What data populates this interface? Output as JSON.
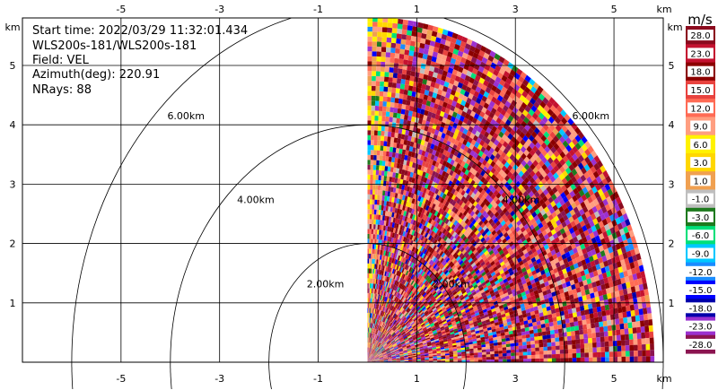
{
  "chart_data": {
    "type": "heatmap",
    "subtype": "radar-ppi-sector",
    "info": {
      "start_time": "Start time: 2022/03/29 11:32:01.434",
      "instrument": "WLS200s-181/WLS200s-181",
      "field": "Field: VEL",
      "azimuth": "Azimuth(deg): 220.91",
      "nrays": "NRays: 88"
    },
    "x_unit": "km",
    "y_unit": "km",
    "xlim": [
      -7.0,
      6.0
    ],
    "ylim": [
      0.0,
      5.8
    ],
    "x_ticks": [
      -5,
      -3,
      -1,
      1,
      3,
      5
    ],
    "y_ticks": [
      1,
      2,
      3,
      4,
      5
    ],
    "sector_deg": [
      0,
      90
    ],
    "max_range_km": 5.82,
    "range_rings": [
      {
        "r": 2,
        "label": "2.00km"
      },
      {
        "r": 4,
        "label": "4.00km"
      },
      {
        "r": 6,
        "label": "6.00km"
      }
    ],
    "colorbar": {
      "unit": "m/s",
      "levels": [
        "28.0",
        "23.0",
        "18.0",
        "15.0",
        "12.0",
        "9.0",
        "6.0",
        "3.0",
        "1.0",
        "-1.0",
        "-3.0",
        "-6.0",
        "-9.0",
        "-12.0",
        "-15.0",
        "-18.0",
        "-23.0",
        "-28.0"
      ],
      "colors": [
        "#8b0a1e",
        "#c41230",
        "#8b0000",
        "#e8433f",
        "#ff6b55",
        "#ff9e80",
        "#fff200",
        "#ffd700",
        "#f0a050",
        "#bfbfbf",
        "#1e7a1e",
        "#00e07a",
        "#00c8ff",
        "#1a8cff",
        "#0000ff",
        "#0000aa",
        "#9b30d0",
        "#8b1450"
      ]
    }
  }
}
